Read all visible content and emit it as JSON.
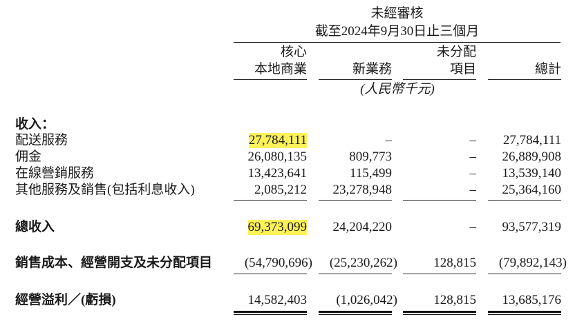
{
  "header": {
    "line1": "未經審核",
    "line2": "截至2024年9月30日止三個月",
    "columns": [
      {
        "line1": "核心",
        "line2": "本地商業"
      },
      {
        "line1": "",
        "line2": "新業務"
      },
      {
        "line1": "未分配",
        "line2": "項目"
      },
      {
        "line1": "",
        "line2": "總計"
      }
    ],
    "unit": "(人民幣千元)"
  },
  "section_revenue": "收入：",
  "rows": [
    {
      "label": "配送服務",
      "values": [
        "27,784,111",
        "–",
        "–",
        "27,784,111"
      ]
    },
    {
      "label": "佣金",
      "values": [
        "26,080,135",
        "809,773",
        "–",
        "26,889,908"
      ]
    },
    {
      "label": "在線營銷服務",
      "values": [
        "13,423,641",
        "115,499",
        "–",
        "13,539,140"
      ]
    },
    {
      "label": "其他服務及銷售(包括利息收入)",
      "values": [
        "2,085,212",
        "23,278,948",
        "–",
        "25,364,160"
      ]
    },
    {
      "label": "總收入",
      "values": [
        "69,373,099",
        "24,204,220",
        "–",
        "93,577,319"
      ]
    },
    {
      "label": "銷售成本、經營開支及未分配項目",
      "values": [
        "(54,790,696)",
        "(25,230,262)",
        "128,815",
        "(79,892,143)"
      ]
    },
    {
      "label": "經營溢利／(虧損)",
      "values": [
        "14,582,403",
        "(1,026,042)",
        "128,815",
        "13,685,176"
      ]
    }
  ],
  "highlight_color": "#fdf25a"
}
